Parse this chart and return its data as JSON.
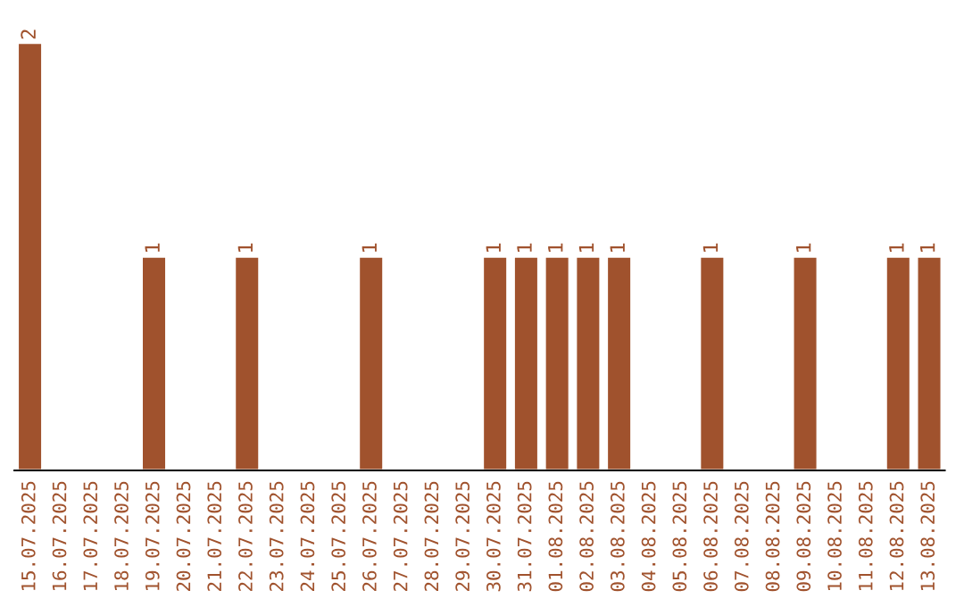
{
  "chart_data": {
    "type": "bar",
    "categories": [
      "15.07.2025",
      "16.07.2025",
      "17.07.2025",
      "18.07.2025",
      "19.07.2025",
      "20.07.2025",
      "21.07.2025",
      "22.07.2025",
      "23.07.2025",
      "24.07.2025",
      "25.07.2025",
      "26.07.2025",
      "27.07.2025",
      "28.07.2025",
      "29.07.2025",
      "30.07.2025",
      "31.07.2025",
      "01.08.2025",
      "02.08.2025",
      "03.08.2025",
      "04.08.2025",
      "05.08.2025",
      "06.08.2025",
      "07.08.2025",
      "08.08.2025",
      "09.08.2025",
      "10.08.2025",
      "11.08.2025",
      "12.08.2025",
      "13.08.2025"
    ],
    "values": [
      2,
      0,
      0,
      0,
      1,
      0,
      0,
      1,
      0,
      0,
      0,
      1,
      0,
      0,
      0,
      1,
      1,
      1,
      1,
      1,
      0,
      0,
      1,
      0,
      0,
      1,
      0,
      0,
      1,
      1
    ],
    "value_labels": [
      "2",
      null,
      null,
      null,
      "1",
      null,
      null,
      "1",
      null,
      null,
      null,
      "1",
      null,
      null,
      null,
      "1",
      "1",
      "1",
      "1",
      "1",
      null,
      null,
      "1",
      null,
      null,
      "1",
      null,
      null,
      "1",
      "1"
    ],
    "color": "#a0522d"
  }
}
